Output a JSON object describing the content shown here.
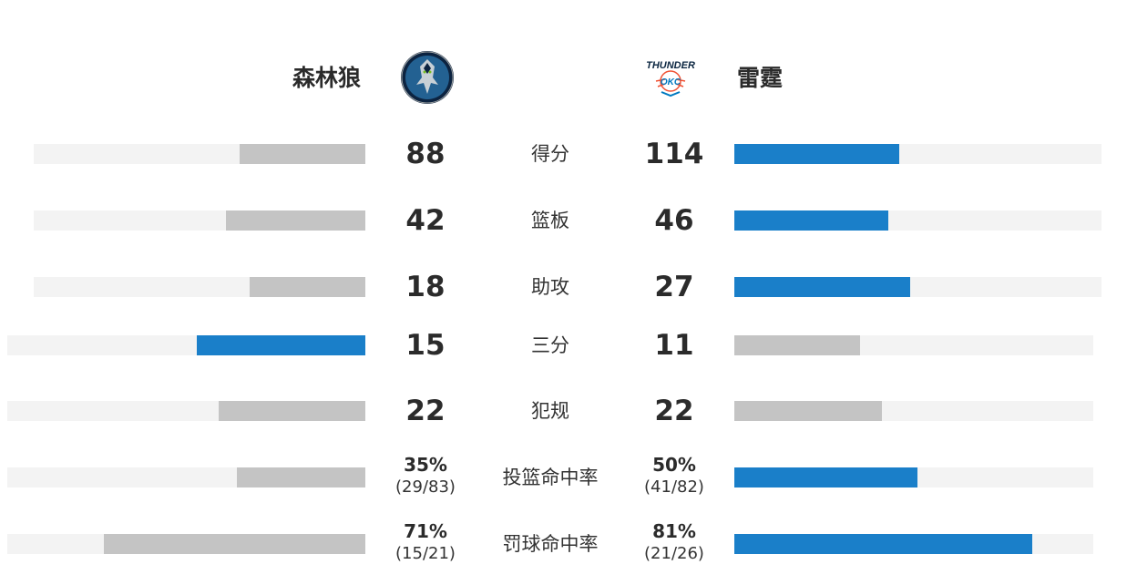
{
  "colors": {
    "winner": "#1a7fc9",
    "loser": "#c4c4c4",
    "track": "#f3f3f3"
  },
  "teams": {
    "left": {
      "name": "森林狼",
      "logo_icon": "timberwolves-logo"
    },
    "right": {
      "name": "雷霆",
      "logo_icon": "thunder-okc-logo"
    }
  },
  "stats": [
    {
      "label": "得分",
      "left": "88",
      "right": "114",
      "left_fill": 0.38,
      "right_fill": 0.45,
      "winner": "right"
    },
    {
      "label": "篮板",
      "left": "42",
      "right": "46",
      "left_fill": 0.42,
      "right_fill": 0.42,
      "winner": "right"
    },
    {
      "label": "助攻",
      "left": "18",
      "right": "27",
      "left_fill": 0.35,
      "right_fill": 0.48,
      "winner": "right"
    },
    {
      "label": "三分",
      "left": "15",
      "right": "11",
      "left_fill": 0.47,
      "right_fill": 0.35,
      "winner": "left"
    },
    {
      "label": "犯规",
      "left": "22",
      "right": "22",
      "left_fill": 0.41,
      "right_fill": 0.41,
      "winner": "none"
    },
    {
      "label": "投篮命中率",
      "left": "35%",
      "left_sub": "(29/83)",
      "right": "50%",
      "right_sub": "(41/82)",
      "left_fill": 0.36,
      "right_fill": 0.51,
      "winner": "right"
    },
    {
      "label": "罚球命中率",
      "left": "71%",
      "left_sub": "(15/21)",
      "right": "81%",
      "right_sub": "(21/26)",
      "left_fill": 0.73,
      "right_fill": 0.83,
      "winner": "right"
    }
  ]
}
